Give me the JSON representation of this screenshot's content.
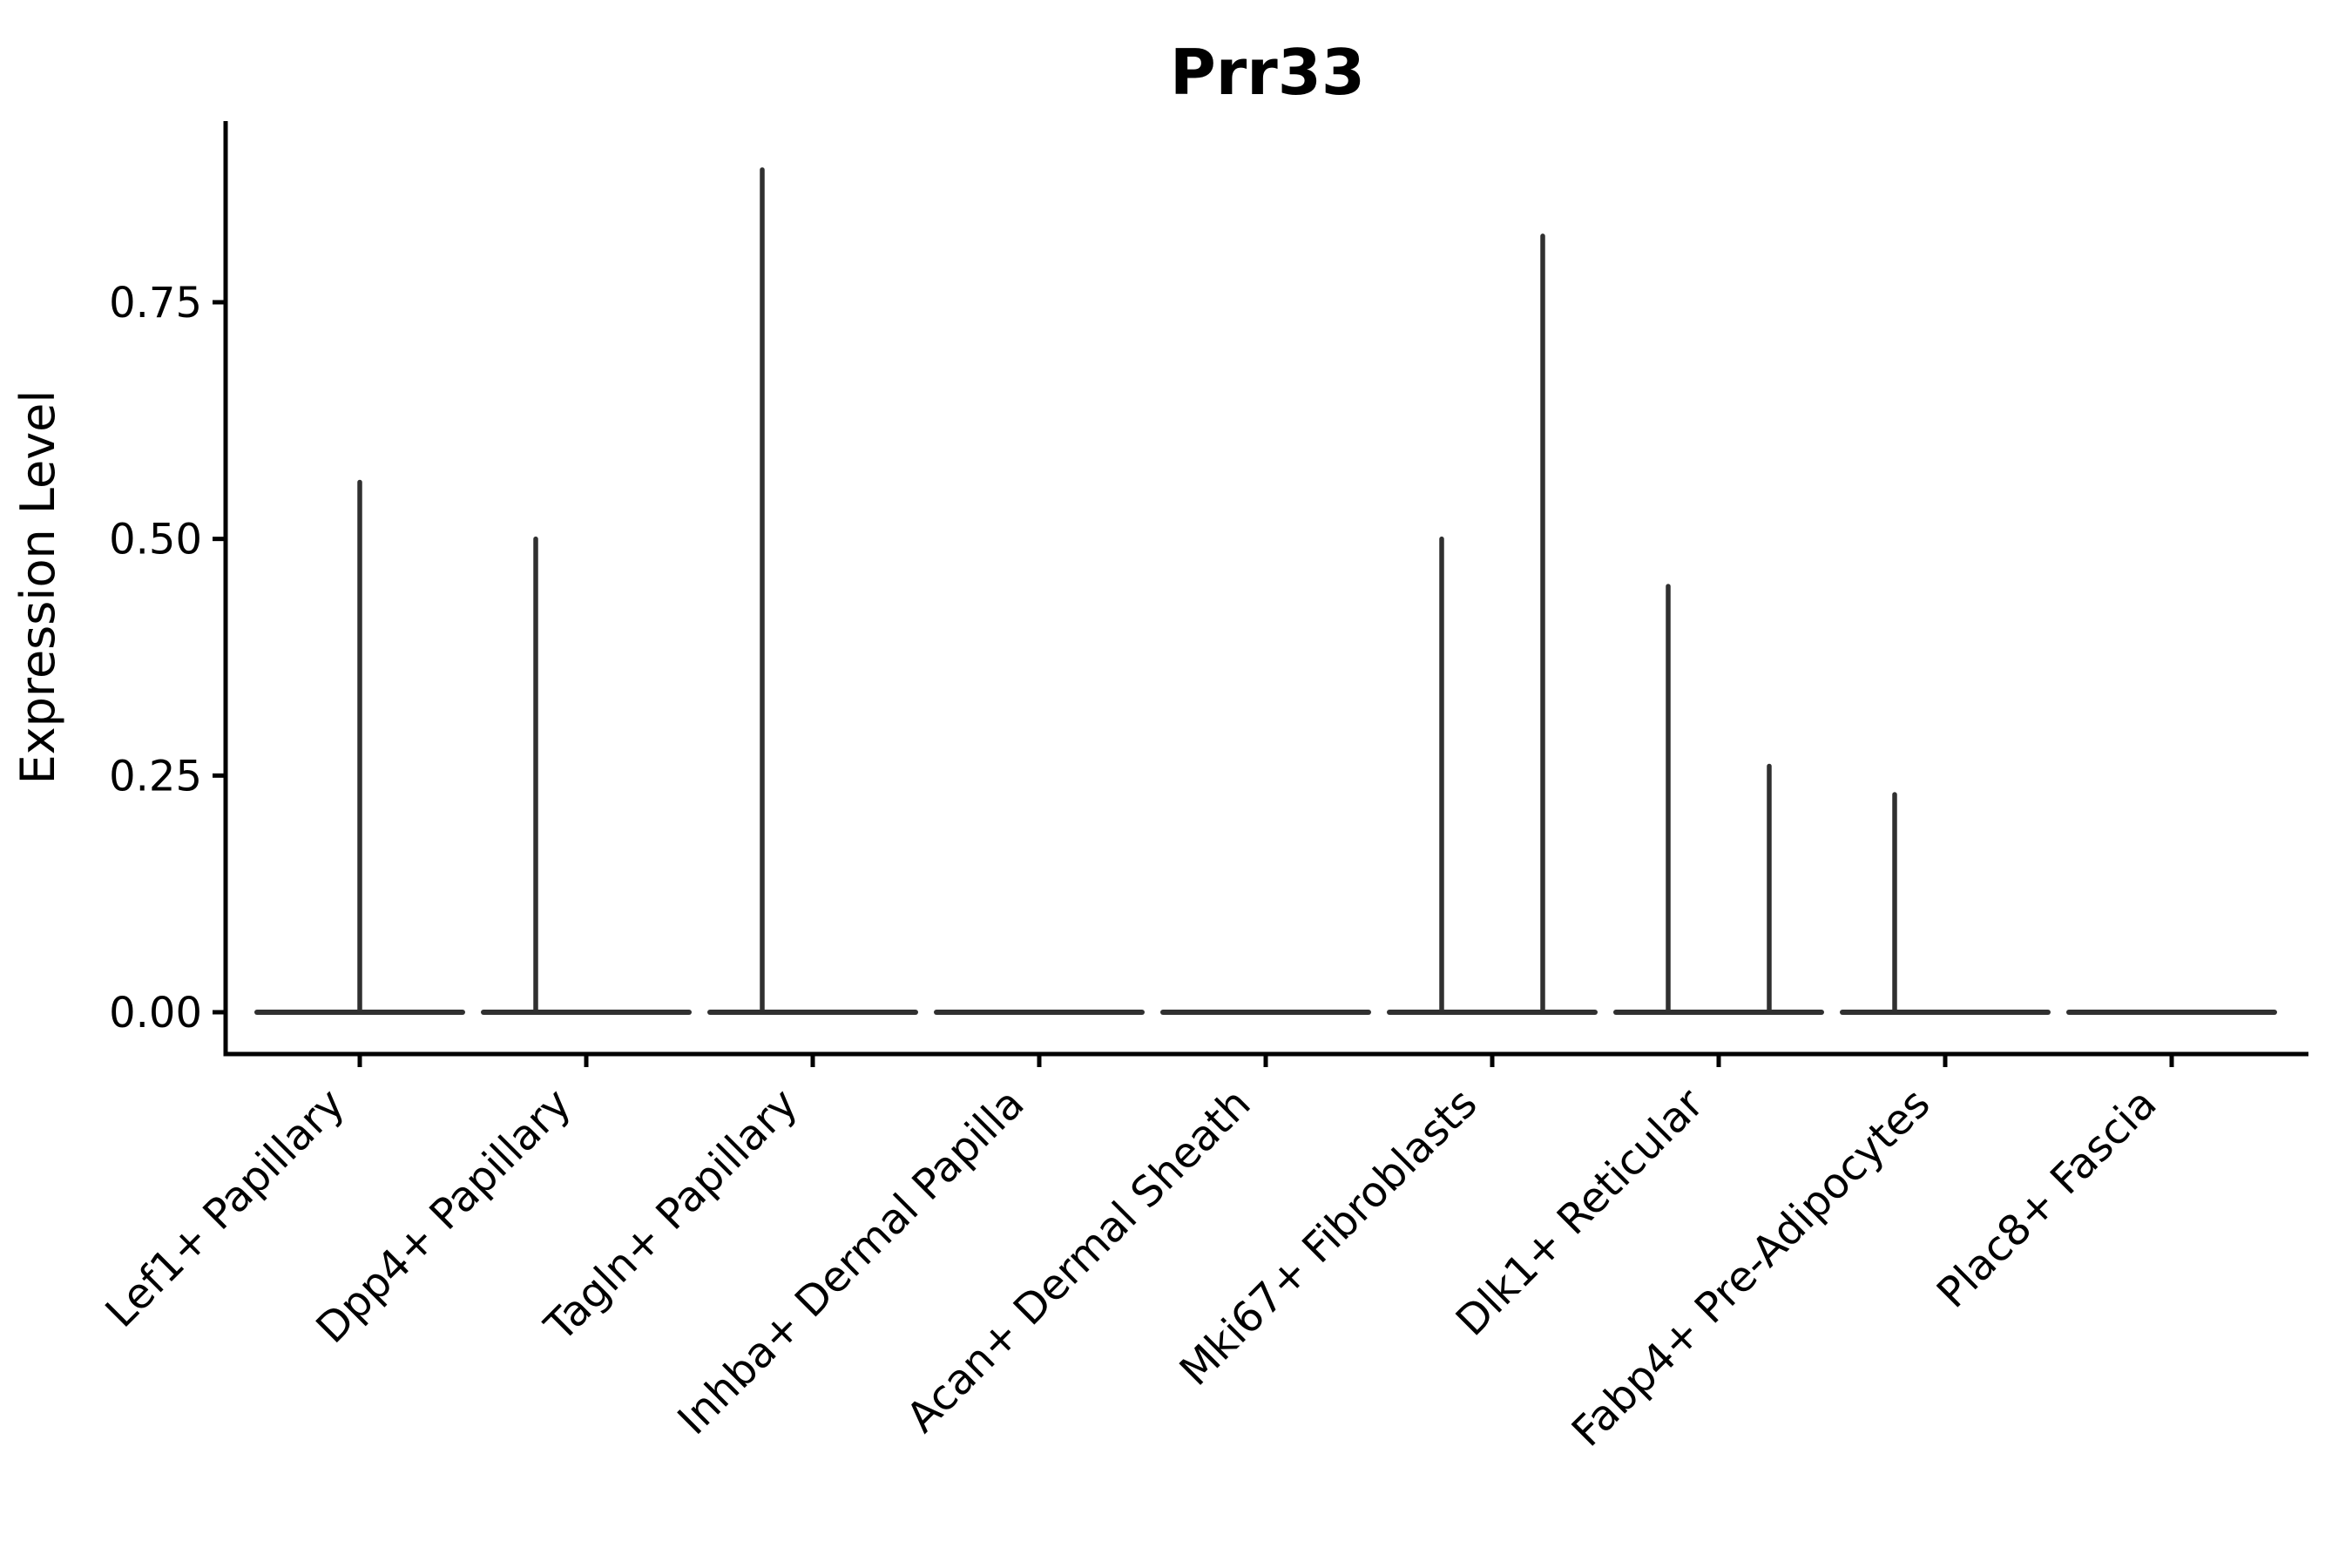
{
  "title": "Prr33",
  "axes": {
    "y_label": "Expression Level",
    "y_tick_labels": [
      "0.00",
      "0.25",
      "0.50",
      "0.75"
    ],
    "x_tick_labels": [
      "Lef1+ Papillary",
      "Dpp4+ Papillary",
      "Tagln+ Papillary",
      "Inhba+ Dermal Papilla",
      "Acan+ Dermal Sheath",
      "Mki67+ Fibroblasts",
      "Dlk1+ Reticular",
      "Fabp4+ Pre-Adipocytes",
      "Plac8+ Fascia"
    ]
  },
  "chart_data": {
    "type": "violin",
    "title": "Prr33",
    "xlabel": "",
    "ylabel": "Expression Level",
    "categories": [
      "Lef1+ Papillary",
      "Dpp4+ Papillary",
      "Tagln+ Papillary",
      "Inhba+ Dermal Papilla",
      "Acan+ Dermal Sheath",
      "Mki67+ Fibroblasts",
      "Dlk1+ Reticular",
      "Fabp4+ Pre-Adipocytes",
      "Plac8+ Fascia"
    ],
    "y_ticks": [
      0,
      0.25,
      0.5,
      0.75
    ],
    "y_tick_labels": [
      "0.00",
      "0.25",
      "0.50",
      "0.75"
    ],
    "ylim": [
      -0.045,
      0.94
    ],
    "grid": false,
    "legend": false,
    "description": "Collapsed violins: each cell type shows a flat density line at expression 0 with thin vertical spikes up to the maximum expression of the few expressing cells.",
    "violins": [
      {
        "category": "Lef1+ Papillary",
        "baseline_value": 0,
        "spikes": [
          {
            "value": 0.56,
            "x_offset": 0
          }
        ]
      },
      {
        "category": "Dpp4+ Papillary",
        "baseline_value": 0,
        "spikes": [
          {
            "value": 0.5,
            "x_offset": -58
          }
        ]
      },
      {
        "category": "Tagln+ Papillary",
        "baseline_value": 0,
        "spikes": [
          {
            "value": 0.89,
            "x_offset": -58
          }
        ]
      },
      {
        "category": "Inhba+ Dermal Papilla",
        "baseline_value": 0,
        "spikes": []
      },
      {
        "category": "Acan+ Dermal Sheath",
        "baseline_value": 0,
        "spikes": []
      },
      {
        "category": "Mki67+ Fibroblasts",
        "baseline_value": 0,
        "spikes": [
          {
            "value": 0.5,
            "x_offset": -58
          },
          {
            "value": 0.82,
            "x_offset": 58
          }
        ]
      },
      {
        "category": "Dlk1+ Reticular",
        "baseline_value": 0,
        "spikes": [
          {
            "value": 0.45,
            "x_offset": -58
          },
          {
            "value": 0.26,
            "x_offset": 58
          }
        ]
      },
      {
        "category": "Fabp4+ Pre-Adipocytes",
        "baseline_value": 0,
        "spikes": [
          {
            "value": 0.23,
            "x_offset": -58
          }
        ]
      },
      {
        "category": "Plac8+ Fascia",
        "baseline_value": 0,
        "spikes": []
      }
    ],
    "colors": {
      "violin_stroke": "#303030",
      "axis_stroke": "#000000",
      "text": "#000000",
      "background": "#ffffff"
    }
  }
}
